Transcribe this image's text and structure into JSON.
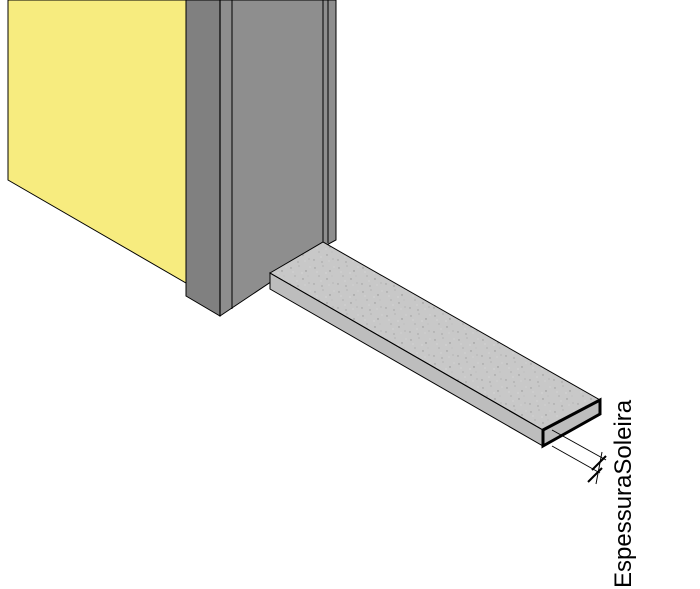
{
  "dimension": {
    "parameter_label": "EspessuraSoleira"
  },
  "colors": {
    "door_panel": "#F7EC7F",
    "frame_dark": "#808080",
    "frame_mid": "#8E8E8E",
    "sill_top": "#C8C8C8",
    "sill_side": "#BDBDBD",
    "outline": "#000000",
    "background": "#FFFFFF"
  }
}
